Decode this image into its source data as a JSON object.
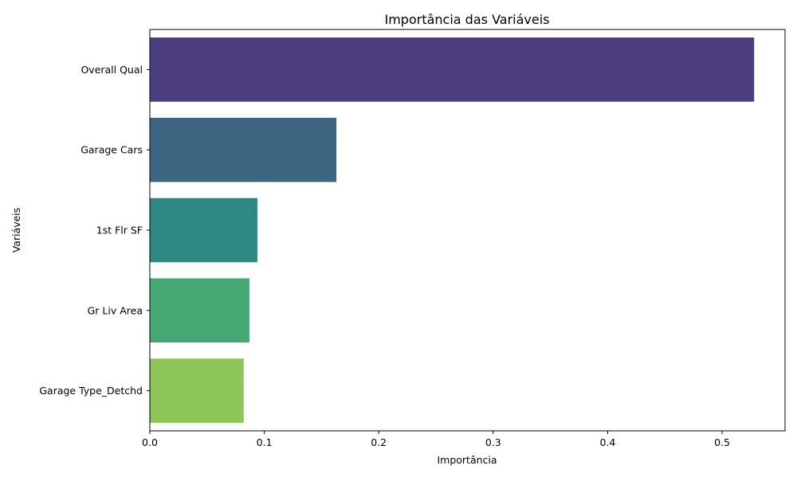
{
  "chart_data": {
    "type": "bar",
    "orientation": "horizontal",
    "title": "Importância das Variáveis",
    "xlabel": "Importância",
    "ylabel": "Variáveis",
    "categories": [
      "Overall Qual",
      "Garage Cars",
      "1st Flr SF",
      "Gr Liv Area",
      "Garage Type_Detchd"
    ],
    "values": [
      0.528,
      0.163,
      0.094,
      0.087,
      0.082
    ],
    "colors": [
      "#4a3f7c",
      "#3d6582",
      "#2e8781",
      "#45a877",
      "#8dc556"
    ],
    "xlim": [
      0,
      0.555
    ],
    "xticks": [
      0,
      0.1,
      0.2,
      0.3,
      0.4,
      0.5
    ],
    "xtick_labels": [
      "0.0",
      "0.1",
      "0.2",
      "0.3",
      "0.4",
      "0.5"
    ],
    "grid": false,
    "legend": "none"
  }
}
